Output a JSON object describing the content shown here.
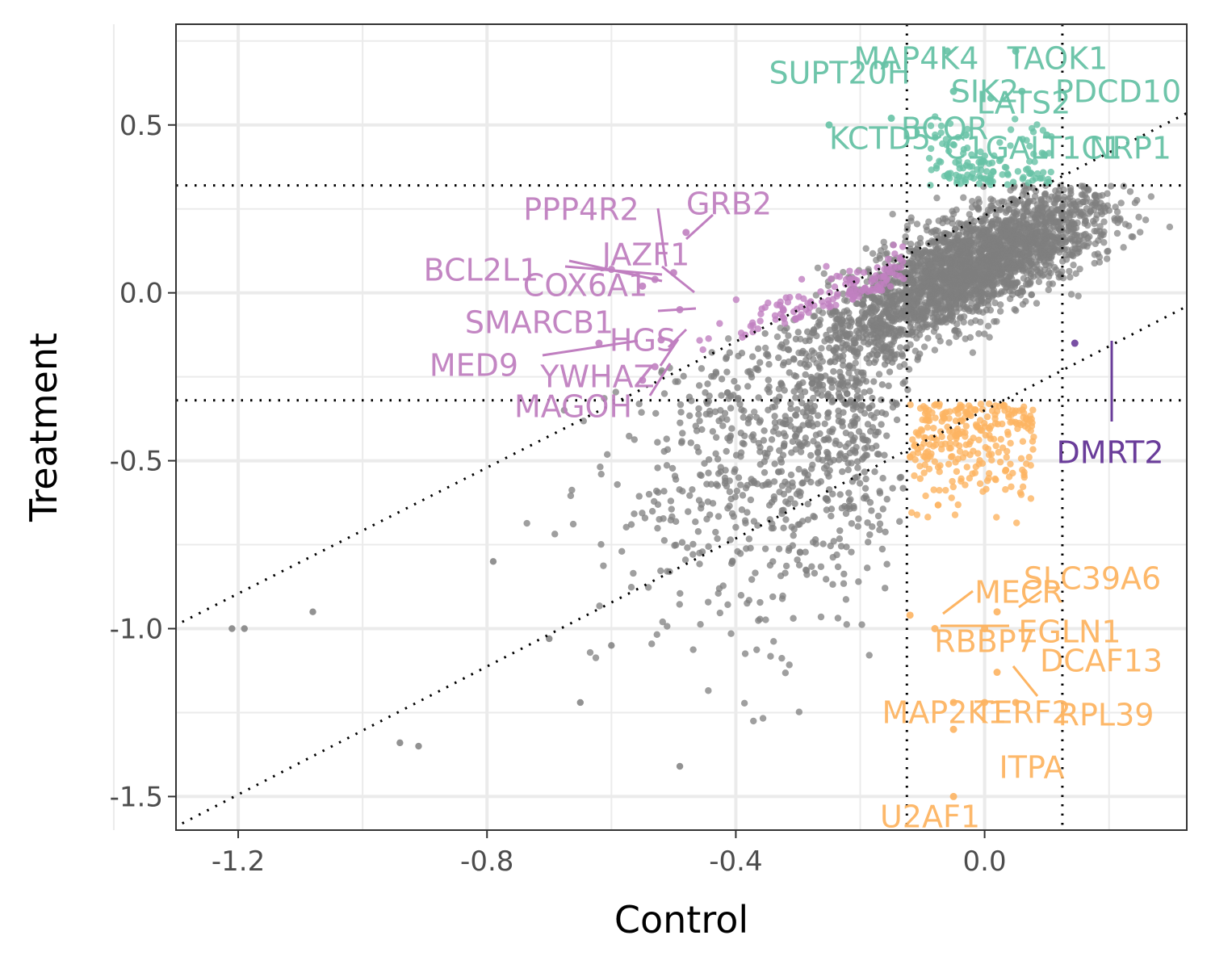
{
  "chart_data": {
    "type": "scatter",
    "xlabel": "Control",
    "ylabel": "Treatment",
    "xlim": [
      -1.3,
      0.325
    ],
    "ylim": [
      -1.6,
      0.8
    ],
    "x_ticks": [
      "-1.2",
      "-0.8",
      "-0.4",
      "0.0"
    ],
    "x_tick_values": [
      -1.2,
      -0.8,
      -0.4,
      0.0
    ],
    "y_ticks": [
      "0.5",
      "0.0",
      "-0.5",
      "-1.0",
      "-1.5"
    ],
    "y_tick_values": [
      0.5,
      0.0,
      -0.5,
      -1.0,
      -1.5
    ],
    "grid": true,
    "legend": "none",
    "thresholds": {
      "vertical": [
        -0.125,
        0.125
      ],
      "horizontal": [
        0.32,
        -0.32
      ],
      "diagonal_lines": [
        {
          "slope": 0.625,
          "intercept": -0.19
        },
        {
          "slope": 0.625,
          "intercept": -0.21
        }
      ]
    },
    "colors": {
      "background_points": "#7f7f7f",
      "upper_group": "#66c2a5",
      "left_group": "#c07fc0",
      "lower_group": "#fdb462",
      "dmrt2": "#6a3d9a"
    },
    "labeled_points": [
      {
        "gene": "MAP4K4",
        "x": -0.06,
        "y": 0.72,
        "group": "upper"
      },
      {
        "gene": "TAOK1",
        "x": 0.05,
        "y": 0.72,
        "group": "upper"
      },
      {
        "gene": "SUPT20H",
        "x": -0.16,
        "y": 0.68,
        "group": "upper"
      },
      {
        "gene": "SIK2",
        "x": -0.05,
        "y": 0.6,
        "group": "upper"
      },
      {
        "gene": "PDCD10",
        "x": 0.06,
        "y": 0.6,
        "group": "upper"
      },
      {
        "gene": "LATS2",
        "x": 0.01,
        "y": 0.58,
        "group": "upper"
      },
      {
        "gene": "BCOR",
        "x": -0.15,
        "y": 0.52,
        "group": "upper"
      },
      {
        "gene": "KCTD5",
        "x": -0.25,
        "y": 0.5,
        "group": "upper"
      },
      {
        "gene": "C1GALT1C1",
        "x": -0.03,
        "y": 0.47,
        "group": "upper"
      },
      {
        "gene": "NRP1",
        "x": 0.1,
        "y": 0.47,
        "group": "upper"
      },
      {
        "gene": "GRB2",
        "x": -0.48,
        "y": 0.18,
        "group": "left"
      },
      {
        "gene": "PPP4R2",
        "x": -0.5,
        "y": 0.06,
        "group": "left"
      },
      {
        "gene": "JAZF1",
        "x": -0.53,
        "y": 0.04,
        "group": "left"
      },
      {
        "gene": "BCL2L1",
        "x": -0.55,
        "y": 0.02,
        "group": "left"
      },
      {
        "gene": "COX6A1",
        "x": -0.6,
        "y": 0.07,
        "group": "left"
      },
      {
        "gene": "SMARCB1",
        "x": -0.49,
        "y": -0.05,
        "group": "left"
      },
      {
        "gene": "HGS",
        "x": -0.52,
        "y": -0.14,
        "group": "left"
      },
      {
        "gene": "MED9",
        "x": -0.62,
        "y": -0.15,
        "group": "left"
      },
      {
        "gene": "YWHAZ",
        "x": -0.53,
        "y": -0.22,
        "group": "left"
      },
      {
        "gene": "MAGOH",
        "x": -0.55,
        "y": -0.26,
        "group": "left"
      },
      {
        "gene": "DMRT2",
        "x": 0.145,
        "y": -0.15,
        "group": "dmrt2"
      },
      {
        "gene": "SLC39A6",
        "x": 0.02,
        "y": -0.95,
        "group": "lower"
      },
      {
        "gene": "MECR",
        "x": -0.12,
        "y": -0.96,
        "group": "lower"
      },
      {
        "gene": "EGLN1",
        "x": 0.0,
        "y": -1.0,
        "group": "lower"
      },
      {
        "gene": "RBBP7",
        "x": -0.08,
        "y": -1.0,
        "group": "lower"
      },
      {
        "gene": "DCAF13",
        "x": 0.02,
        "y": -1.13,
        "group": "lower"
      },
      {
        "gene": "MAP2K1",
        "x": -0.05,
        "y": -1.22,
        "group": "lower"
      },
      {
        "gene": "TERF2",
        "x": 0.0,
        "y": -1.22,
        "group": "lower"
      },
      {
        "gene": "RPL39",
        "x": 0.05,
        "y": -1.22,
        "group": "lower"
      },
      {
        "gene": "ITPA",
        "x": -0.05,
        "y": -1.3,
        "group": "lower"
      },
      {
        "gene": "U2AF1",
        "x": -0.05,
        "y": -1.5,
        "group": "lower"
      }
    ]
  }
}
